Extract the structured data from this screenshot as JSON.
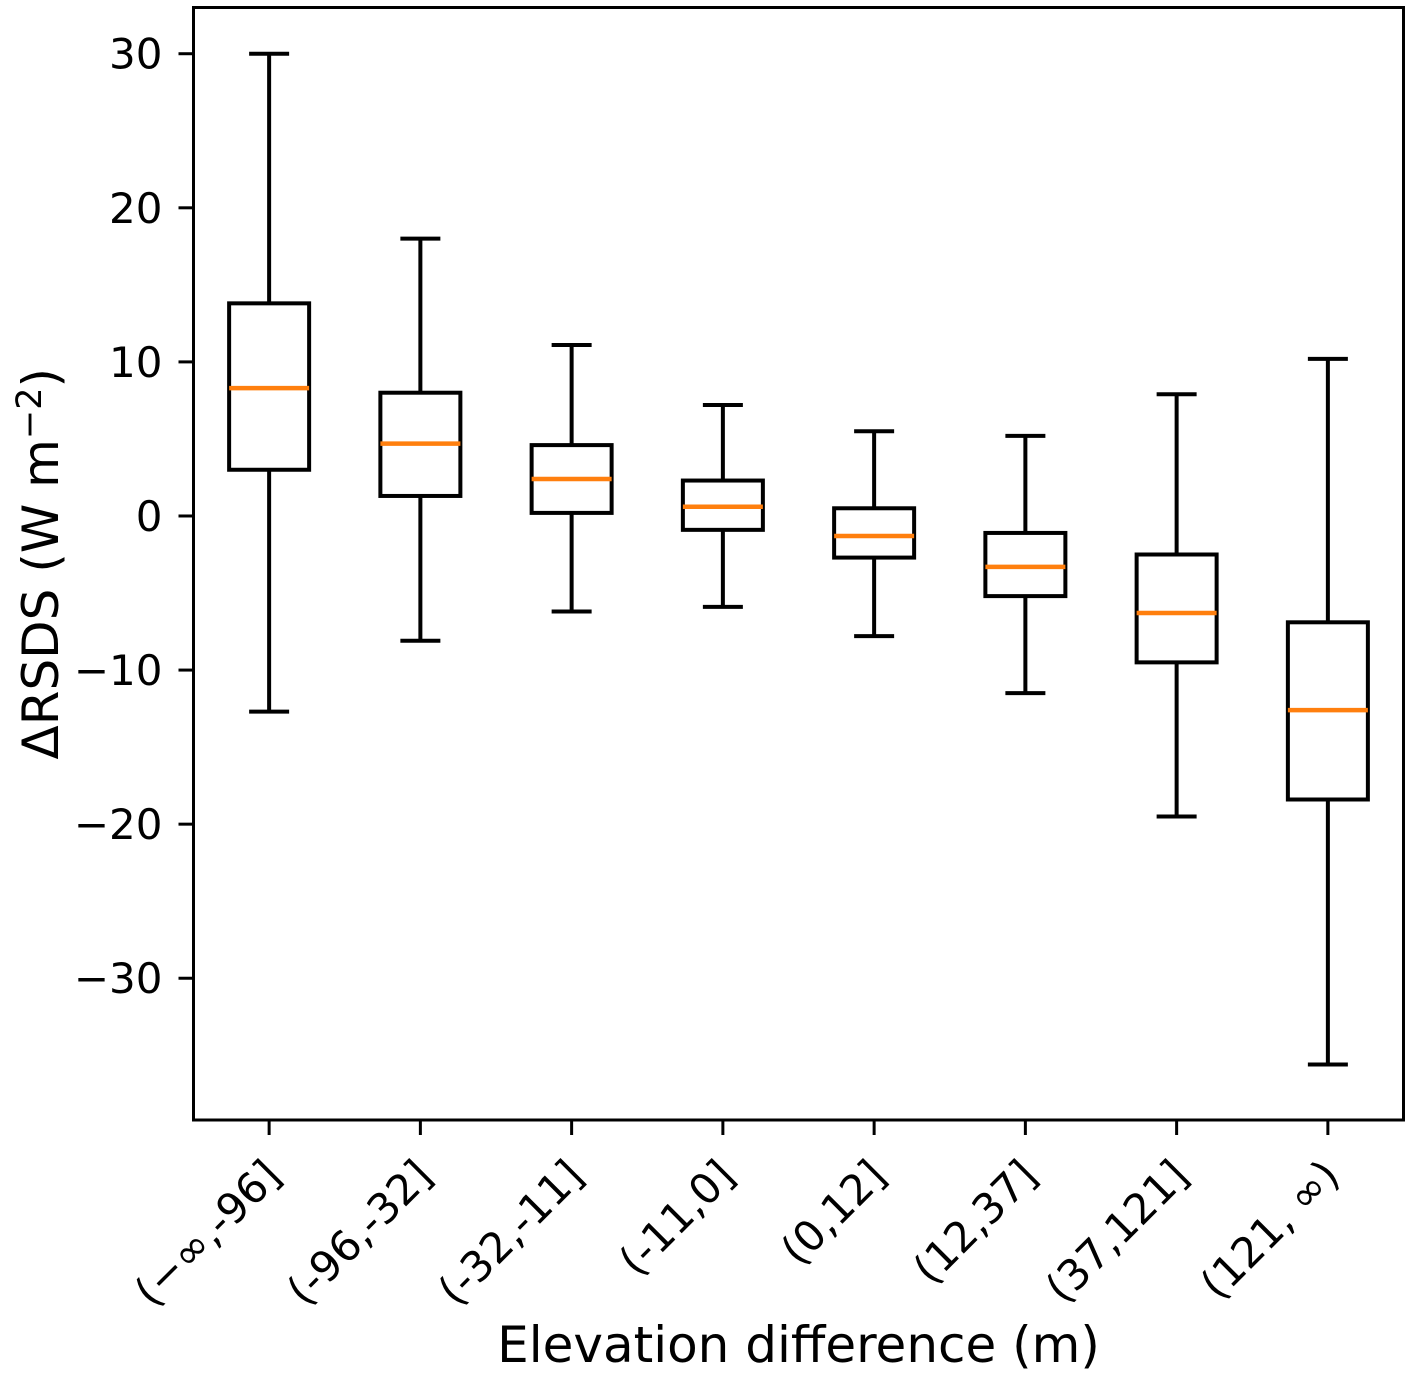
{
  "chart_data": {
    "type": "box",
    "title": "",
    "xlabel": "Elevation difference (m)",
    "ylabel": "ΔRSDS (W m⁻²)",
    "ylabel_parts": {
      "prefix": "ΔRSDS (W m",
      "superscript": "−2",
      "suffix": ")"
    },
    "categories": [
      "(−∞,-96]",
      "(-96,-32]",
      "(-32,-11]",
      "(-11,0]",
      "(0,12]",
      "(12,37]",
      "(37,121]",
      "(121, ∞)"
    ],
    "boxes": [
      {
        "label": "(−∞,-96]",
        "whisker_low": -12.7,
        "q1": 3.0,
        "median": 8.3,
        "q3": 13.8,
        "whisker_high": 30.0
      },
      {
        "label": "(-96,-32]",
        "whisker_low": -8.1,
        "q1": 1.3,
        "median": 4.7,
        "q3": 8.0,
        "whisker_high": 18.0
      },
      {
        "label": "(-32,-11]",
        "whisker_low": -6.2,
        "q1": 0.2,
        "median": 2.4,
        "q3": 4.6,
        "whisker_high": 11.1
      },
      {
        "label": "(-11,0]",
        "whisker_low": -5.9,
        "q1": -0.9,
        "median": 0.6,
        "q3": 2.3,
        "whisker_high": 7.2
      },
      {
        "label": "(0,12]",
        "whisker_low": -7.8,
        "q1": -2.7,
        "median": -1.3,
        "q3": 0.5,
        "whisker_high": 5.5
      },
      {
        "label": "(12,37]",
        "whisker_low": -11.5,
        "q1": -5.2,
        "median": -3.3,
        "q3": -1.1,
        "whisker_high": 5.2
      },
      {
        "label": "(37,121]",
        "whisker_low": -19.5,
        "q1": -9.5,
        "median": -6.3,
        "q3": -2.5,
        "whisker_high": 7.9
      },
      {
        "label": "(121, ∞)",
        "whisker_low": -35.6,
        "q1": -18.4,
        "median": -12.6,
        "q3": -6.9,
        "whisker_high": 10.2
      }
    ],
    "yticks": [
      30,
      20,
      10,
      0,
      -10,
      -20,
      -30
    ],
    "ytick_labels": [
      "30",
      "20",
      "10",
      "0",
      "−10",
      "−20",
      "−30"
    ],
    "ylim": [
      -39.2,
      33.0
    ],
    "xlim": [
      0.5,
      8.5
    ],
    "grid": false,
    "legend": null,
    "colors": {
      "box_stroke": "#000000",
      "median": "#ff7f0e",
      "background": "#ffffff",
      "text": "#000000"
    }
  }
}
